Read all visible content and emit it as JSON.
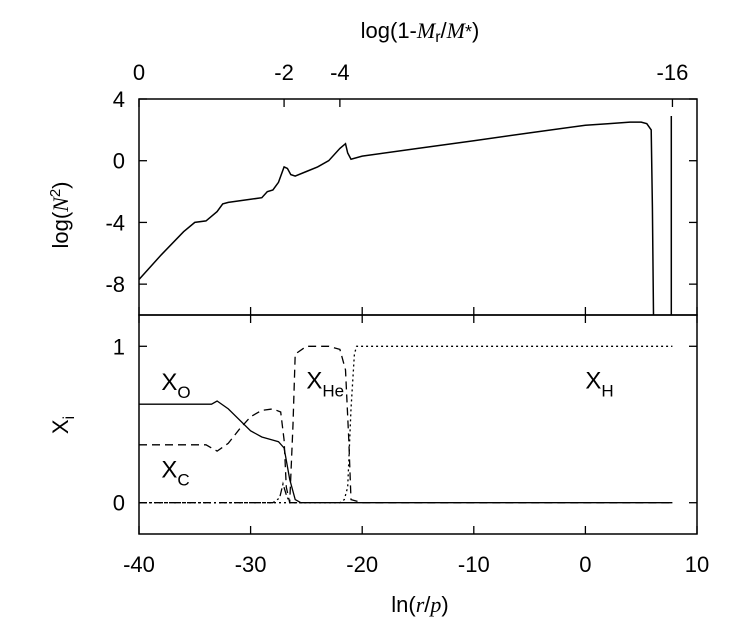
{
  "chart_data": [
    {
      "type": "line",
      "panel": "top",
      "ylabel": "log(N²)",
      "xlabel_top": "log(1-Mr/M*)",
      "x_range": [
        -40,
        10
      ],
      "ylim": [
        -10,
        4
      ],
      "yticks": [
        "4",
        "0",
        "-4",
        "-8"
      ],
      "ytick_values": [
        4,
        0,
        -4,
        -8
      ],
      "top_ticks": [
        {
          "label": "0",
          "x": -40
        },
        {
          "label": "-2",
          "x": -27
        },
        {
          "label": "-4",
          "x": -22
        },
        {
          "label": "-16",
          "x": 7.8
        }
      ],
      "series": [
        {
          "x": [
            -40,
            -38,
            -36,
            -35,
            -34,
            -33.5,
            -33,
            -32.5,
            -32,
            -30,
            -29,
            -28.5,
            -28,
            -27.5,
            -27,
            -26.7,
            -26.4,
            -26,
            -25,
            -24,
            -23,
            -22,
            -21.5,
            -21.3,
            -21,
            -20,
            -15,
            -10,
            -5,
            0,
            2,
            4,
            5,
            5.5,
            5.9,
            6.0,
            6.1
          ],
          "y": [
            -7.7,
            -6.1,
            -4.6,
            -4.0,
            -3.9,
            -3.6,
            -3.3,
            -2.8,
            -2.7,
            -2.5,
            -2.4,
            -2.0,
            -1.9,
            -1.4,
            -0.4,
            -0.5,
            -0.9,
            -1.0,
            -0.7,
            -0.4,
            0.0,
            0.8,
            1.1,
            0.5,
            0.1,
            0.3,
            0.8,
            1.3,
            1.8,
            2.3,
            2.4,
            2.5,
            2.5,
            2.4,
            2.0,
            -3.0,
            -10.0
          ]
        },
        {
          "x": [
            7.7,
            7.7
          ],
          "y": [
            -10,
            2.9
          ]
        }
      ]
    },
    {
      "type": "line",
      "panel": "bottom",
      "ylabel": "X_i",
      "xlabel": "ln(r/p)",
      "x_range": [
        -40,
        10
      ],
      "ylim": [
        -0.2,
        1.2
      ],
      "xticks": [
        "-40",
        "-30",
        "-20",
        "-10",
        "0",
        "10"
      ],
      "xtick_values": [
        -40,
        -30,
        -20,
        -10,
        0,
        10
      ],
      "yticks": [
        "1",
        "0"
      ],
      "ytick_values": [
        1,
        0
      ],
      "series": [
        {
          "name": "X_O",
          "style": "solid",
          "x": [
            -40,
            -35,
            -33.5,
            -33,
            -32,
            -30,
            -29,
            -28,
            -27.5,
            -27,
            -26.5,
            -26,
            -25.5,
            -25,
            -20,
            -10,
            0,
            7.8
          ],
          "y": [
            0.63,
            0.63,
            0.63,
            0.65,
            0.6,
            0.46,
            0.42,
            0.4,
            0.39,
            0.35,
            0.15,
            0.02,
            0.0,
            0.0,
            0.0,
            0.0,
            0.0,
            0.0
          ]
        },
        {
          "name": "X_C",
          "style": "dashed",
          "x": [
            -40,
            -35,
            -34,
            -33,
            -32,
            -31,
            -30,
            -29,
            -28,
            -27.3,
            -27,
            -26.8,
            -26.5,
            -26.2,
            -26,
            -25,
            -23,
            -22,
            -21.5,
            -21.2,
            -21,
            -20,
            7.8
          ],
          "y": [
            0.37,
            0.37,
            0.37,
            0.33,
            0.38,
            0.47,
            0.55,
            0.59,
            0.6,
            0.58,
            0.4,
            0.1,
            0.0,
            0.5,
            0.95,
            1.0,
            1.0,
            0.98,
            0.85,
            0.4,
            0.02,
            0.0,
            0.0
          ]
        },
        {
          "name": "X_H",
          "style": "dotted",
          "x": [
            -40,
            -22,
            -21.6,
            -21.3,
            -21,
            -20.7,
            -20.5,
            -10,
            0,
            7.8
          ],
          "y": [
            0.0,
            0.0,
            0.02,
            0.1,
            0.6,
            0.95,
            1.0,
            1.0,
            1.0,
            1.0
          ]
        },
        {
          "name": "X_He",
          "style": "dash-dot",
          "x": [
            -40,
            -28,
            -27.4,
            -27.1,
            -26.8,
            -26.5,
            -25.5,
            -25
          ],
          "y": [
            0.0,
            0.0,
            0.03,
            0.12,
            0.05,
            0.0,
            0.0,
            0.0
          ]
        }
      ],
      "annotations": [
        {
          "base": "X",
          "sub": "O",
          "x": -38,
          "y": 0.72
        },
        {
          "base": "X",
          "sub": "He",
          "x": -25,
          "y": 0.73
        },
        {
          "base": "X",
          "sub": "H",
          "x": 0,
          "y": 0.73
        },
        {
          "base": "X",
          "sub": "C",
          "x": -38,
          "y": 0.16
        }
      ]
    }
  ],
  "labels": {
    "top_axis": "log(1-Mr/M*)",
    "bottom_axis": "ln(r/p)",
    "top_ylabel": "log(N²)",
    "bottom_ylabel": "Xi"
  }
}
